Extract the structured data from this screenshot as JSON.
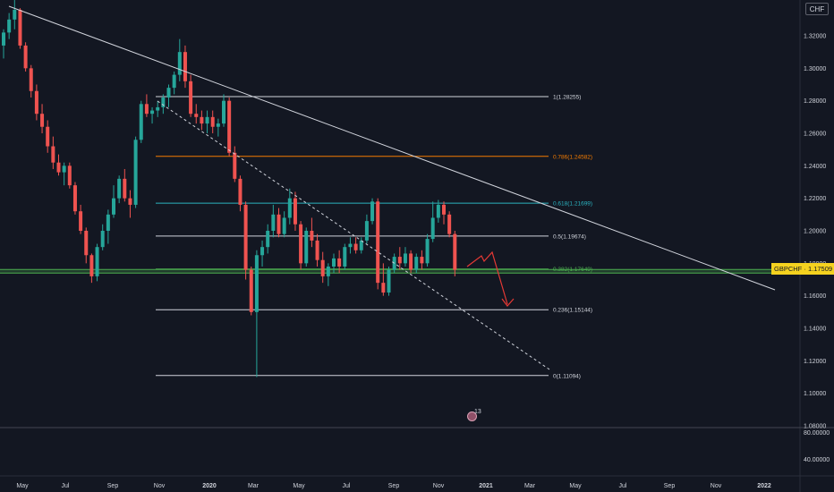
{
  "currency_badge": "CHF",
  "price_label": {
    "symbol": "GBPCHF",
    "price": "1.17509",
    "color": "#f5d21f"
  },
  "event_count": "13",
  "colors": {
    "background": "#131722",
    "bullish": "#26a69a",
    "bearish": "#ef5350",
    "grid_text": "#d1d4dc"
  },
  "chart_data": {
    "type": "candlestick",
    "symbol": "GBPCHF",
    "price_axis": {
      "ticks": [
        "1.32000",
        "1.30000",
        "1.28000",
        "1.26000",
        "1.24000",
        "1.22000",
        "1.20000",
        "1.18000",
        "1.16000",
        "1.14000",
        "1.12000",
        "1.10000",
        "1.08000"
      ],
      "range": [
        1.08,
        1.33
      ]
    },
    "indicator_axis": {
      "ticks": [
        "80.00000",
        "40.00000"
      ]
    },
    "time_axis": {
      "labels": [
        {
          "text": "May",
          "bold": false
        },
        {
          "text": "Jul",
          "bold": false
        },
        {
          "text": "Sep",
          "bold": false
        },
        {
          "text": "Nov",
          "bold": false
        },
        {
          "text": "2020",
          "bold": true
        },
        {
          "text": "Mar",
          "bold": false
        },
        {
          "text": "May",
          "bold": false
        },
        {
          "text": "Jul",
          "bold": false
        },
        {
          "text": "Sep",
          "bold": false
        },
        {
          "text": "Nov",
          "bold": false
        },
        {
          "text": "2021",
          "bold": true
        },
        {
          "text": "Mar",
          "bold": false
        },
        {
          "text": "May",
          "bold": false
        },
        {
          "text": "Jul",
          "bold": false
        },
        {
          "text": "Sep",
          "bold": false
        },
        {
          "text": "Nov",
          "bold": false
        },
        {
          "text": "2022",
          "bold": true
        }
      ]
    },
    "fibonacci_levels": [
      {
        "label": "1(1.28255)",
        "price": 1.28255,
        "color": "#d1d4dc"
      },
      {
        "label": "0.786(1.24582)",
        "price": 1.24582,
        "color": "#f57c00"
      },
      {
        "label": "0.618(1.21699)",
        "price": 1.21699,
        "color": "#2bb3c0"
      },
      {
        "label": "0.5(1.19674)",
        "price": 1.19674,
        "color": "#d1d4dc"
      },
      {
        "label": "0.382(1.17649)",
        "price": 1.17649,
        "color": "#4caf50"
      },
      {
        "label": "0.236(1.15144)",
        "price": 1.15144,
        "color": "#d1d4dc"
      },
      {
        "label": "0(1.11094)",
        "price": 1.11094,
        "color": "#d1d4dc"
      }
    ],
    "current_price": 1.17509,
    "candles": [
      [
        1.314,
        1.324,
        1.306,
        1.322
      ],
      [
        1.322,
        1.334,
        1.318,
        1.33
      ],
      [
        1.33,
        1.342,
        1.324,
        1.336
      ],
      [
        1.336,
        1.337,
        1.312,
        1.314
      ],
      [
        1.314,
        1.316,
        1.298,
        1.3
      ],
      [
        1.3,
        1.302,
        1.282,
        1.286
      ],
      [
        1.286,
        1.29,
        1.268,
        1.272
      ],
      [
        1.272,
        1.278,
        1.26,
        1.264
      ],
      [
        1.264,
        1.268,
        1.248,
        1.252
      ],
      [
        1.252,
        1.258,
        1.238,
        1.242
      ],
      [
        1.242,
        1.247,
        1.234,
        1.236
      ],
      [
        1.236,
        1.242,
        1.228,
        1.24
      ],
      [
        1.24,
        1.242,
        1.226,
        1.228
      ],
      [
        1.228,
        1.23,
        1.21,
        1.212
      ],
      [
        1.212,
        1.216,
        1.198,
        1.2
      ],
      [
        1.2,
        1.202,
        1.18,
        1.185
      ],
      [
        1.185,
        1.186,
        1.168,
        1.172
      ],
      [
        1.172,
        1.192,
        1.169,
        1.19
      ],
      [
        1.19,
        1.204,
        1.188,
        1.2
      ],
      [
        1.2,
        1.213,
        1.192,
        1.21
      ],
      [
        1.21,
        1.228,
        1.208,
        1.22
      ],
      [
        1.22,
        1.234,
        1.217,
        1.232
      ],
      [
        1.232,
        1.238,
        1.218,
        1.22
      ],
      [
        1.22,
        1.225,
        1.208,
        1.216
      ],
      [
        1.216,
        1.258,
        1.214,
        1.256
      ],
      [
        1.256,
        1.28,
        1.254,
        1.278
      ],
      [
        1.278,
        1.284,
        1.27,
        1.272
      ],
      [
        1.272,
        1.276,
        1.266,
        1.274
      ],
      [
        1.274,
        1.28,
        1.27,
        1.276
      ],
      [
        1.276,
        1.284,
        1.272,
        1.282
      ],
      [
        1.282,
        1.29,
        1.276,
        1.288
      ],
      [
        1.288,
        1.298,
        1.284,
        1.296
      ],
      [
        1.296,
        1.318,
        1.292,
        1.31
      ],
      [
        1.31,
        1.314,
        1.288,
        1.292
      ],
      [
        1.292,
        1.296,
        1.27,
        1.272
      ],
      [
        1.272,
        1.278,
        1.266,
        1.27
      ],
      [
        1.27,
        1.274,
        1.262,
        1.266
      ],
      [
        1.266,
        1.274,
        1.26,
        1.27
      ],
      [
        1.27,
        1.274,
        1.26,
        1.264
      ],
      [
        1.264,
        1.269,
        1.258,
        1.266
      ],
      [
        1.266,
        1.284,
        1.264,
        1.28
      ],
      [
        1.28,
        1.282,
        1.246,
        1.248
      ],
      [
        1.248,
        1.252,
        1.23,
        1.232
      ],
      [
        1.232,
        1.234,
        1.212,
        1.216
      ],
      [
        1.216,
        1.218,
        1.17,
        1.176
      ],
      [
        1.176,
        1.178,
        1.148,
        1.15
      ],
      [
        1.15,
        1.188,
        1.11,
        1.185
      ],
      [
        1.185,
        1.194,
        1.178,
        1.19
      ],
      [
        1.19,
        1.204,
        1.186,
        1.2
      ],
      [
        1.2,
        1.216,
        1.196,
        1.21
      ],
      [
        1.21,
        1.214,
        1.196,
        1.198
      ],
      [
        1.198,
        1.212,
        1.196,
        1.208
      ],
      [
        1.208,
        1.226,
        1.204,
        1.22
      ],
      [
        1.22,
        1.224,
        1.2,
        1.204
      ],
      [
        1.204,
        1.206,
        1.176,
        1.18
      ],
      [
        1.18,
        1.202,
        1.178,
        1.2
      ],
      [
        1.2,
        1.208,
        1.19,
        1.194
      ],
      [
        1.194,
        1.198,
        1.178,
        1.182
      ],
      [
        1.182,
        1.187,
        1.168,
        1.172
      ],
      [
        1.172,
        1.18,
        1.166,
        1.178
      ],
      [
        1.178,
        1.186,
        1.174,
        1.183
      ],
      [
        1.183,
        1.188,
        1.174,
        1.178
      ],
      [
        1.178,
        1.192,
        1.176,
        1.19
      ],
      [
        1.19,
        1.196,
        1.186,
        1.192
      ],
      [
        1.192,
        1.196,
        1.186,
        1.188
      ],
      [
        1.188,
        1.196,
        1.186,
        1.194
      ],
      [
        1.194,
        1.21,
        1.192,
        1.206
      ],
      [
        1.206,
        1.22,
        1.204,
        1.218
      ],
      [
        1.218,
        1.22,
        1.164,
        1.168
      ],
      [
        1.168,
        1.18,
        1.16,
        1.162
      ],
      [
        1.162,
        1.178,
        1.16,
        1.176
      ],
      [
        1.176,
        1.186,
        1.174,
        1.184
      ],
      [
        1.184,
        1.19,
        1.176,
        1.18
      ],
      [
        1.18,
        1.19,
        1.178,
        1.186
      ],
      [
        1.186,
        1.188,
        1.174,
        1.176
      ],
      [
        1.176,
        1.186,
        1.174,
        1.184
      ],
      [
        1.184,
        1.188,
        1.176,
        1.18
      ],
      [
        1.18,
        1.198,
        1.178,
        1.195
      ],
      [
        1.195,
        1.218,
        1.193,
        1.208
      ],
      [
        1.208,
        1.219,
        1.205,
        1.216
      ],
      [
        1.216,
        1.218,
        1.204,
        1.21
      ],
      [
        1.21,
        1.212,
        1.196,
        1.198
      ],
      [
        1.198,
        1.2,
        1.172,
        1.176
      ]
    ],
    "trendline": {
      "from": [
        "2019-05",
        1.335
      ],
      "to": [
        "2022-01",
        1.162
      ]
    },
    "projection": [
      [
        1.176,
        1.186,
        1.178,
        1.192,
        1.152
      ]
    ]
  }
}
